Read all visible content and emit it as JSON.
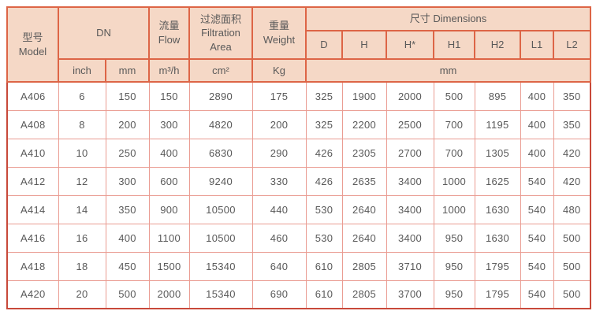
{
  "colors": {
    "header_background": "#f5d8c6",
    "outer_border": "#c8493a",
    "header_border": "#dd6546",
    "body_border": "#ea9c92",
    "text": "#595959"
  },
  "table": {
    "header": {
      "model": "型号\nModel",
      "dn": "DN",
      "flow": "流量\nFlow",
      "filtration_area": "过滤面积\nFiltration\nArea",
      "weight": "重量\nWeight",
      "dimensions": "尺寸 Dimensions",
      "dim_cols": [
        "D",
        "H",
        "H*",
        "H1",
        "H2",
        "L1",
        "L2"
      ],
      "units": {
        "inch": "inch",
        "mm": "mm",
        "flow": "m³/h",
        "area": "cm²",
        "weight": "Kg",
        "dims": "mm"
      }
    },
    "rows": [
      [
        "A406",
        "6",
        "150",
        "150",
        "2890",
        "175",
        "325",
        "1900",
        "2000",
        "500",
        "895",
        "400",
        "350"
      ],
      [
        "A408",
        "8",
        "200",
        "300",
        "4820",
        "200",
        "325",
        "2200",
        "2500",
        "700",
        "1195",
        "400",
        "350"
      ],
      [
        "A410",
        "10",
        "250",
        "400",
        "6830",
        "290",
        "426",
        "2305",
        "2700",
        "700",
        "1305",
        "400",
        "420"
      ],
      [
        "A412",
        "12",
        "300",
        "600",
        "9240",
        "330",
        "426",
        "2635",
        "3400",
        "1000",
        "1625",
        "540",
        "420"
      ],
      [
        "A414",
        "14",
        "350",
        "900",
        "10500",
        "440",
        "530",
        "2640",
        "3400",
        "1000",
        "1630",
        "540",
        "480"
      ],
      [
        "A416",
        "16",
        "400",
        "1100",
        "10500",
        "460",
        "530",
        "2640",
        "3400",
        "950",
        "1630",
        "540",
        "500"
      ],
      [
        "A418",
        "18",
        "450",
        "1500",
        "15340",
        "640",
        "610",
        "2805",
        "3710",
        "950",
        "1795",
        "540",
        "500"
      ],
      [
        "A420",
        "20",
        "500",
        "2000",
        "15340",
        "690",
        "610",
        "2805",
        "3700",
        "950",
        "1795",
        "540",
        "500"
      ]
    ]
  }
}
